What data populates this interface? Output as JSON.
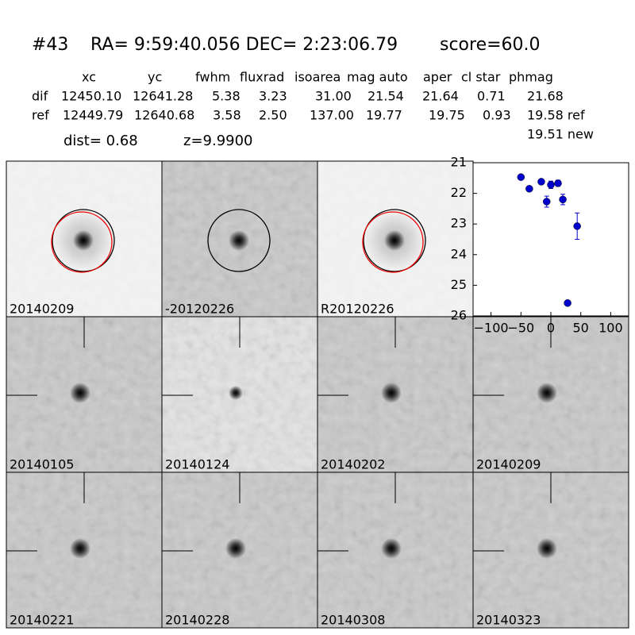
{
  "header": {
    "id": "#43",
    "coords": "RA= 9:59:40.056 DEC= 2:23:06.79",
    "score": "score=60.0"
  },
  "table": {
    "columns": [
      "xc",
      "yc",
      "fwhm",
      "fluxrad",
      "isoarea",
      "mag auto",
      "aper",
      "cl star",
      "phmag"
    ],
    "rows": [
      [
        "dif",
        "12450.10",
        "12641.28",
        "5.38",
        "3.23",
        "31.00",
        "21.54",
        "21.64",
        "0.71",
        "21.68"
      ],
      [
        "ref",
        "12449.79",
        "12640.68",
        "3.58",
        "2.50",
        "137.00",
        "19.77",
        "19.75",
        "0.93",
        "19.58 ref"
      ]
    ],
    "extra": "19.51 new"
  },
  "summary": {
    "dist": "dist=  0.68",
    "z": "z=9.9900"
  },
  "panels": [
    {
      "label": "20140209"
    },
    {
      "label": "-20120226"
    },
    {
      "label": "R20120226"
    },
    {
      "label": "20140105"
    },
    {
      "label": "20140124"
    },
    {
      "label": "20140202"
    },
    {
      "label": "20140209",
      "color": "#ff0000"
    },
    {
      "label": "20140221"
    },
    {
      "label": "20140228"
    },
    {
      "label": "20140308"
    },
    {
      "label": "20140323"
    }
  ],
  "plot": {
    "type": "scatter",
    "color": "#0000cc",
    "x": [
      -50,
      -36,
      -16,
      -7,
      0,
      12,
      20,
      44,
      28
    ],
    "values": [
      21.47,
      21.85,
      21.62,
      22.27,
      21.72,
      21.67,
      22.2,
      23.07,
      25.58
    ],
    "errors": [
      0.05,
      0.07,
      0.06,
      0.18,
      0.12,
      0.1,
      0.17,
      0.43,
      0.08
    ],
    "xlim": [
      -130,
      130
    ],
    "ylim": [
      21,
      26
    ],
    "y_inverted": true,
    "xticks": [
      {
        "value": -100,
        "label": "−100"
      },
      {
        "value": -50,
        "label": "−50"
      },
      0,
      50,
      100
    ],
    "yticks": [
      21,
      22,
      23,
      24,
      25,
      26
    ]
  }
}
